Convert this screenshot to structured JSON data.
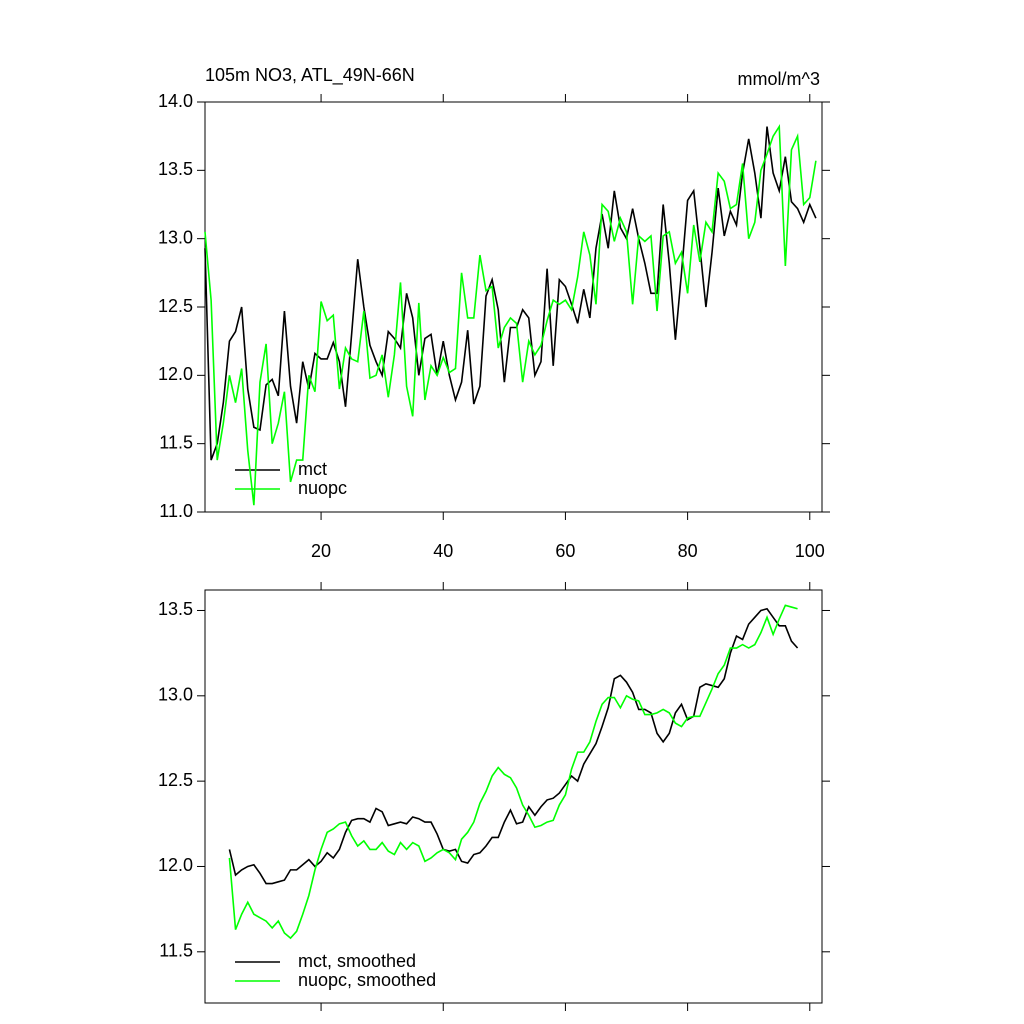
{
  "chart_data": [
    {
      "type": "line",
      "title": "105m NO3, ATL_49N-66N",
      "units": "mmol/m^3",
      "x": [
        1,
        2,
        3,
        4,
        5,
        6,
        7,
        8,
        9,
        10,
        11,
        12,
        13,
        14,
        15,
        16,
        17,
        18,
        19,
        20,
        21,
        22,
        23,
        24,
        25,
        26,
        27,
        28,
        29,
        30,
        31,
        32,
        33,
        34,
        35,
        36,
        37,
        38,
        39,
        40,
        41,
        42,
        43,
        44,
        45,
        46,
        47,
        48,
        49,
        50,
        51,
        52,
        53,
        54,
        55,
        56,
        57,
        58,
        59,
        60,
        61,
        62,
        63,
        64,
        65,
        66,
        67,
        68,
        69,
        70,
        71,
        72,
        73,
        74,
        75,
        76,
        77,
        78,
        79,
        80,
        81,
        82,
        83,
        84,
        85,
        86,
        87,
        88,
        89,
        90,
        91,
        92,
        93,
        94,
        95,
        96,
        97,
        98,
        99,
        100,
        101
      ],
      "series": [
        {
          "name": "mct",
          "color": "#000000",
          "values": [
            12.93,
            11.38,
            11.5,
            11.8,
            12.25,
            12.32,
            12.5,
            11.9,
            11.62,
            11.6,
            11.93,
            11.97,
            11.85,
            12.47,
            11.92,
            11.65,
            12.1,
            11.9,
            12.16,
            12.12,
            12.12,
            12.24,
            12.1,
            11.77,
            12.3,
            12.85,
            12.5,
            12.22,
            12.1,
            12.0,
            12.32,
            12.27,
            12.2,
            12.6,
            12.42,
            12.0,
            12.27,
            12.3,
            12.0,
            12.25,
            12.0,
            11.82,
            11.95,
            12.33,
            11.79,
            11.92,
            12.58,
            12.7,
            12.48,
            11.95,
            12.35,
            12.35,
            12.48,
            12.42,
            12.0,
            12.1,
            12.78,
            12.07,
            12.7,
            12.65,
            12.52,
            12.38,
            12.63,
            12.42,
            12.93,
            13.18,
            12.93,
            13.35,
            13.08,
            13.0,
            13.22,
            13.0,
            12.82,
            12.6,
            12.6,
            13.25,
            12.82,
            12.26,
            12.75,
            13.28,
            13.35,
            12.94,
            12.5,
            12.9,
            13.37,
            13.02,
            13.2,
            13.1,
            13.48,
            13.73,
            13.48,
            13.15,
            13.82,
            13.48,
            13.35,
            13.6,
            13.27,
            13.22,
            13.12,
            13.25,
            13.15
          ]
        },
        {
          "name": "nuopc",
          "color": "#00ff00",
          "values": [
            13.05,
            12.55,
            11.38,
            11.65,
            12.0,
            11.8,
            12.05,
            11.45,
            11.05,
            11.95,
            12.23,
            11.5,
            11.65,
            11.88,
            11.22,
            11.38,
            11.38,
            12.0,
            11.88,
            12.54,
            12.4,
            12.44,
            11.9,
            12.2,
            12.12,
            12.1,
            12.47,
            11.98,
            12.0,
            12.15,
            11.84,
            12.15,
            12.68,
            11.92,
            11.7,
            12.53,
            11.82,
            12.07,
            12.0,
            12.13,
            12.02,
            12.05,
            12.75,
            12.42,
            12.42,
            12.88,
            12.62,
            12.65,
            12.2,
            12.35,
            12.42,
            12.38,
            11.95,
            12.25,
            12.15,
            12.22,
            12.4,
            12.55,
            12.52,
            12.55,
            12.48,
            12.72,
            13.05,
            12.88,
            12.52,
            13.25,
            13.2,
            12.98,
            13.15,
            13.05,
            12.52,
            13.02,
            12.98,
            13.02,
            12.47,
            13.02,
            13.05,
            12.82,
            12.9,
            12.6,
            13.1,
            12.83,
            13.12,
            13.05,
            13.48,
            13.42,
            13.22,
            13.25,
            13.55,
            13.0,
            13.12,
            13.5,
            13.62,
            13.75,
            13.82,
            12.8,
            13.65,
            13.75,
            13.25,
            13.3,
            13.57
          ]
        }
      ],
      "xlim": [
        1,
        102
      ],
      "xticks": [
        20,
        40,
        60,
        80,
        100
      ],
      "ylim": [
        11,
        14
      ],
      "yticks": [
        {
          "value": 11,
          "label": "11.0"
        },
        11.5,
        {
          "value": 12,
          "label": "12.0"
        },
        12.5,
        {
          "value": 13,
          "label": "13.0"
        },
        13.5,
        {
          "value": 14,
          "label": "14.0"
        }
      ]
    },
    {
      "type": "line",
      "x": [
        5,
        6,
        7,
        8,
        9,
        10,
        11,
        12,
        13,
        14,
        15,
        16,
        17,
        18,
        19,
        20,
        21,
        22,
        23,
        24,
        25,
        26,
        27,
        28,
        29,
        30,
        31,
        32,
        33,
        34,
        35,
        36,
        37,
        38,
        39,
        40,
        41,
        42,
        43,
        44,
        45,
        46,
        47,
        48,
        49,
        50,
        51,
        52,
        53,
        54,
        55,
        56,
        57,
        58,
        59,
        60,
        61,
        62,
        63,
        64,
        65,
        66,
        67,
        68,
        69,
        70,
        71,
        72,
        73,
        74,
        75,
        76,
        77,
        78,
        79,
        80,
        81,
        82,
        83,
        84,
        85,
        86,
        87,
        88,
        89,
        90,
        91,
        92,
        93,
        94,
        95,
        96,
        97,
        98
      ],
      "series": [
        {
          "name": "mct, smoothed",
          "color": "#000000",
          "values": [
            12.1,
            11.95,
            11.98,
            12.0,
            12.01,
            11.96,
            11.9,
            11.9,
            11.91,
            11.92,
            11.98,
            11.98,
            12.01,
            12.04,
            12.0,
            12.03,
            12.08,
            12.05,
            12.1,
            12.2,
            12.27,
            12.28,
            12.28,
            12.26,
            12.34,
            12.32,
            12.24,
            12.25,
            12.26,
            12.25,
            12.29,
            12.28,
            12.26,
            12.26,
            12.19,
            12.1,
            12.09,
            12.1,
            12.03,
            12.02,
            12.07,
            12.08,
            12.12,
            12.17,
            12.17,
            12.26,
            12.33,
            12.25,
            12.26,
            12.35,
            12.3,
            12.35,
            12.39,
            12.4,
            12.43,
            12.48,
            12.53,
            12.5,
            12.6,
            12.66,
            12.72,
            12.82,
            12.93,
            13.1,
            13.12,
            13.08,
            13.02,
            12.92,
            12.92,
            12.9,
            12.78,
            12.73,
            12.78,
            12.9,
            12.95,
            12.86,
            12.88,
            13.05,
            13.07,
            13.06,
            13.05,
            13.1,
            13.25,
            13.35,
            13.33,
            13.42,
            13.46,
            13.5,
            13.51,
            13.46,
            13.41,
            13.41,
            13.32,
            13.28
          ]
        },
        {
          "name": "nuopc, smoothed",
          "color": "#00ff00",
          "values": [
            12.05,
            11.63,
            11.72,
            11.79,
            11.72,
            11.7,
            11.68,
            11.64,
            11.68,
            11.61,
            11.58,
            11.62,
            11.72,
            11.83,
            11.98,
            12.1,
            12.2,
            12.22,
            12.25,
            12.26,
            12.18,
            12.12,
            12.15,
            12.1,
            12.1,
            12.14,
            12.09,
            12.07,
            12.14,
            12.1,
            12.14,
            12.12,
            12.03,
            12.05,
            12.08,
            12.1,
            12.08,
            12.04,
            12.16,
            12.2,
            12.26,
            12.37,
            12.44,
            12.53,
            12.58,
            12.54,
            12.52,
            12.46,
            12.36,
            12.3,
            12.23,
            12.24,
            12.26,
            12.27,
            12.36,
            12.42,
            12.57,
            12.67,
            12.67,
            12.73,
            12.85,
            12.95,
            12.99,
            12.99,
            12.93,
            13.0,
            12.98,
            12.97,
            12.89,
            12.89,
            12.9,
            12.92,
            12.9,
            12.84,
            12.82,
            12.87,
            12.88,
            12.88,
            12.96,
            13.04,
            13.13,
            13.18,
            13.28,
            13.28,
            13.3,
            13.28,
            13.3,
            13.37,
            13.46,
            13.36,
            13.45,
            13.53,
            13.52,
            13.51
          ]
        }
      ],
      "xlim": [
        1,
        102
      ],
      "ylim": [
        11.2,
        13.62
      ],
      "yticks": [
        11.5,
        {
          "value": 12,
          "label": "12.0"
        },
        12.5,
        {
          "value": 13,
          "label": "13.0"
        },
        13.5
      ]
    }
  ]
}
